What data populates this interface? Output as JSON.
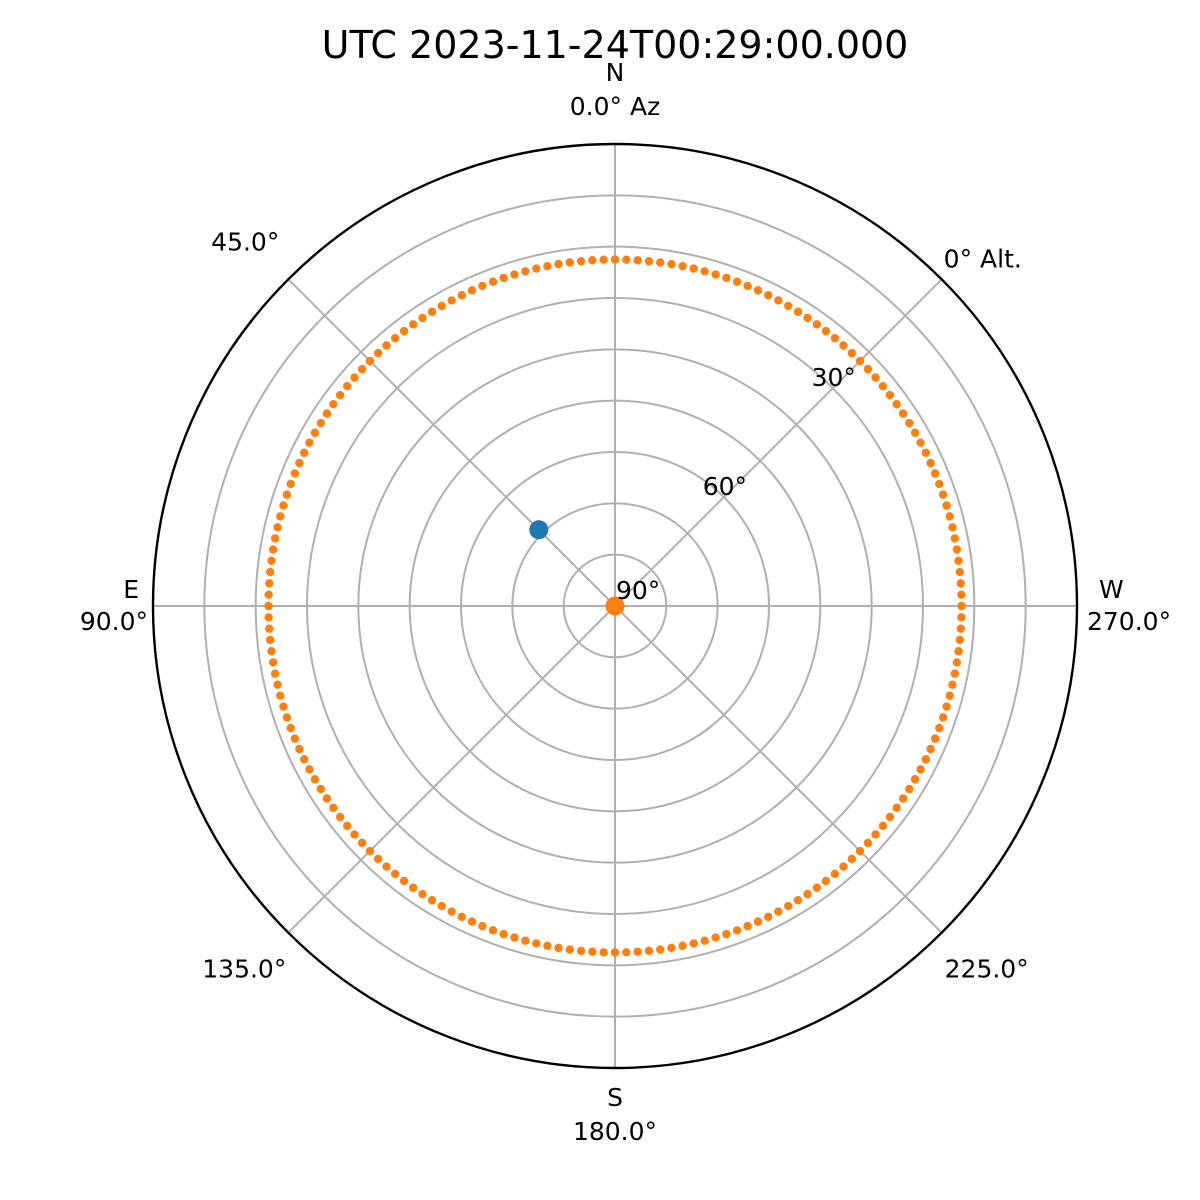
{
  "chart_data": {
    "type": "scatter",
    "projection": "polar",
    "title": "UTC 2023-11-24T00:29:00.000",
    "azimuth_direction": "counterclockwise from North",
    "radial_axis": {
      "quantity": "altitude",
      "range_deg": [
        90,
        0
      ],
      "ticks": [
        {
          "value": 90,
          "label": "90°"
        },
        {
          "value": 60,
          "label": "60°"
        },
        {
          "value": 30,
          "label": "30°"
        },
        {
          "value": 0,
          "label": "0° Alt."
        }
      ],
      "gridlines_deg": [
        90,
        80,
        70,
        60,
        50,
        40,
        30,
        20,
        10,
        0
      ]
    },
    "angular_axis": {
      "quantity": "azimuth",
      "ticks": [
        {
          "az": 0,
          "label": "0.0° Az",
          "cardinal": "N"
        },
        {
          "az": 45,
          "label": "45.0°",
          "cardinal": ""
        },
        {
          "az": 90,
          "label": "90.0°",
          "cardinal": "E"
        },
        {
          "az": 135,
          "label": "135.0°",
          "cardinal": ""
        },
        {
          "az": 180,
          "label": "180.0°",
          "cardinal": "S"
        },
        {
          "az": 225,
          "label": "225.0°",
          "cardinal": ""
        },
        {
          "az": 270,
          "label": "270.0°",
          "cardinal": "W"
        }
      ]
    },
    "grid": true,
    "series": [
      {
        "color": "#1f77b4",
        "points": [
          {
            "az": 45,
            "alt": 69
          }
        ]
      },
      {
        "color": "#ff7f0e",
        "points": [
          {
            "az": 0,
            "alt": 90
          }
        ]
      },
      {
        "color": "#ff7f0e",
        "ring_alt": 22.5,
        "az_start": 0,
        "az_end": 360,
        "point_count": 192
      }
    ]
  }
}
